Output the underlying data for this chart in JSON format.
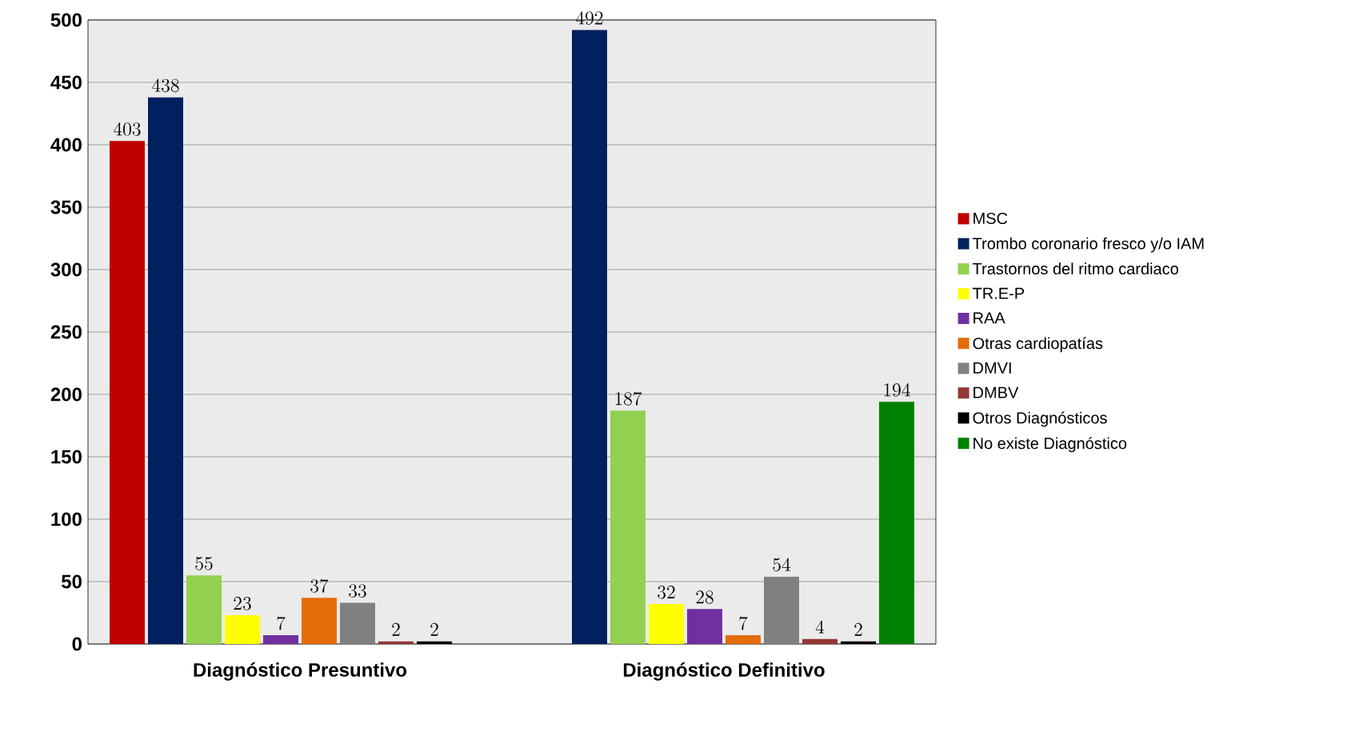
{
  "chart_data": {
    "type": "bar",
    "categories": [
      "Diagnóstico Presuntivo",
      "Diagnóstico Definitivo"
    ],
    "series": [
      {
        "name": "MSC",
        "color": "#c00000",
        "values": [
          403,
          null
        ]
      },
      {
        "name": "Trombo coronario fresco y/o IAM",
        "color": "#002060",
        "values": [
          438,
          492
        ]
      },
      {
        "name": "Trastornos del ritmo cardiaco",
        "color": "#92d050",
        "values": [
          55,
          187
        ]
      },
      {
        "name": "TR.E-P",
        "color": "#ffff00",
        "values": [
          23,
          32
        ]
      },
      {
        "name": "RAA",
        "color": "#7030a0",
        "values": [
          7,
          28
        ]
      },
      {
        "name": "Otras cardiopatías",
        "color": "#e36c09",
        "values": [
          37,
          7
        ]
      },
      {
        "name": "DMVI",
        "color": "#808080",
        "values": [
          33,
          54
        ]
      },
      {
        "name": "DMBV",
        "color": "#953735",
        "values": [
          2,
          4
        ]
      },
      {
        "name": "Otros Diagnósticos",
        "color": "#000000",
        "values": [
          2,
          2
        ]
      },
      {
        "name": "No existe Diagnóstico",
        "color": "#008000",
        "values": [
          null,
          194
        ]
      }
    ],
    "ylim": [
      0,
      500
    ],
    "yticks": [
      0,
      50,
      100,
      150,
      200,
      250,
      300,
      350,
      400,
      450,
      500
    ],
    "grid": "y",
    "legend": "right",
    "data_labels": true
  }
}
